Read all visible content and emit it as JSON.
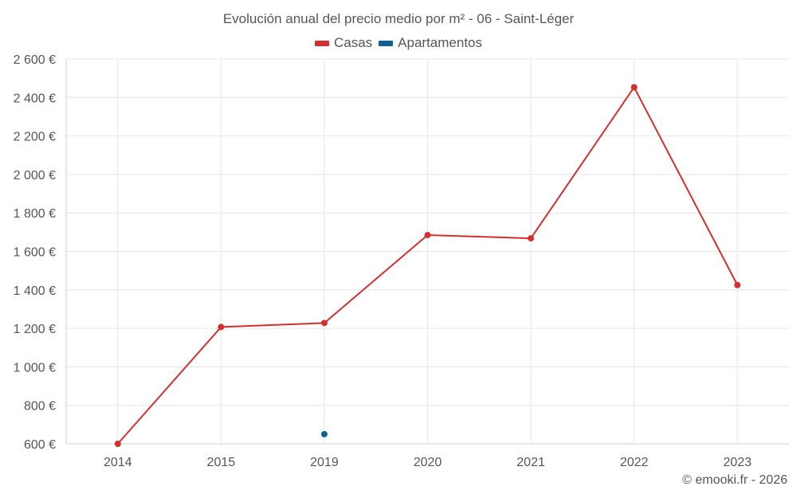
{
  "chart_data": {
    "type": "line",
    "title": "Evolución anual del precio medio por m² - 06 - Saint-Léger",
    "categories": [
      "2014",
      "2015",
      "2019",
      "2020",
      "2021",
      "2022",
      "2023"
    ],
    "series": [
      {
        "name": "Casas",
        "color": "#d32f2f",
        "values": [
          600,
          1207,
          1228,
          1685,
          1668,
          2453,
          1425
        ]
      },
      {
        "name": "Apartamentos",
        "color": "#0d6196",
        "values": [
          null,
          null,
          650,
          null,
          null,
          null,
          null
        ]
      }
    ],
    "y_ticks": [
      600,
      800,
      1000,
      1200,
      1400,
      1600,
      1800,
      2000,
      2200,
      2400,
      2600
    ],
    "y_tick_labels": [
      "600 €",
      "800 €",
      "1 000 €",
      "1 200 €",
      "1 400 €",
      "1 600 €",
      "1 800 €",
      "2 000 €",
      "2 200 €",
      "2 400 €",
      "2 600 €"
    ],
    "ylim": [
      600,
      2600
    ],
    "xlabel": "",
    "ylabel": "",
    "grid": true,
    "legend_position": "top-center"
  },
  "credit": "© emooki.fr - 2026"
}
